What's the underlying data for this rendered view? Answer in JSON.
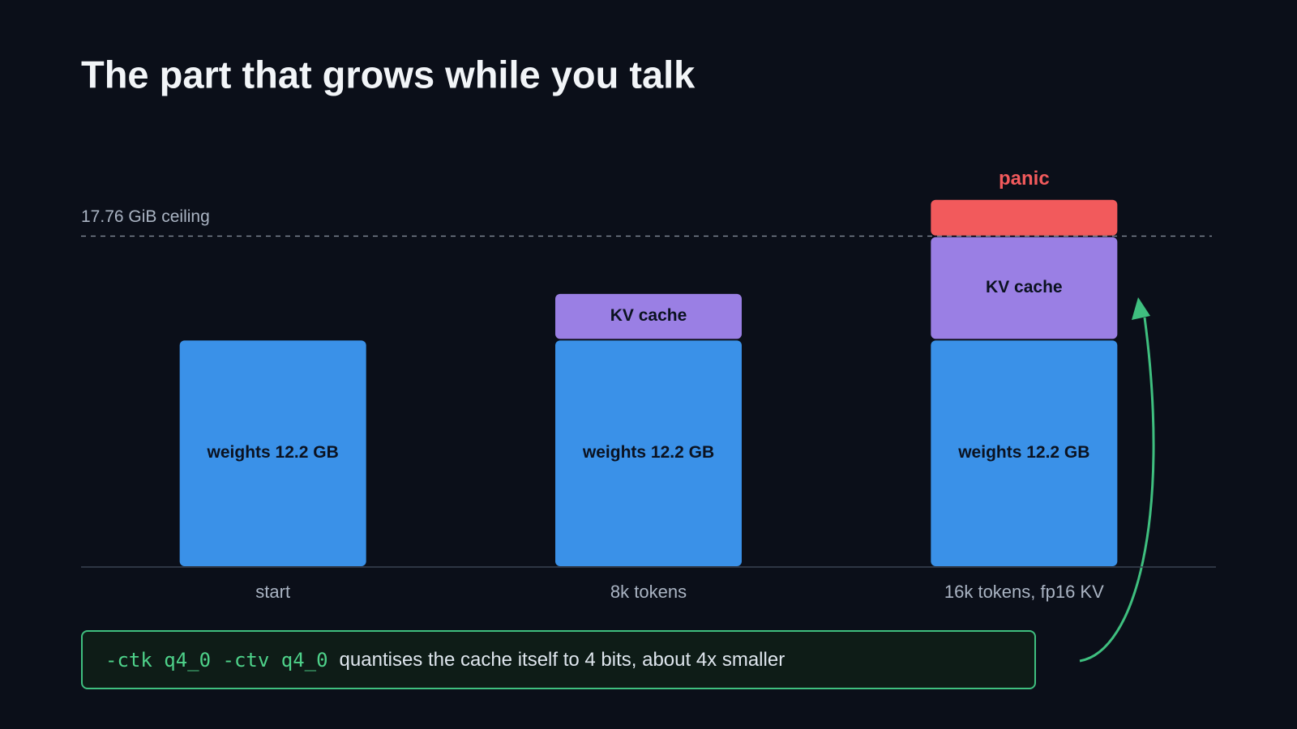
{
  "chart_data": {
    "type": "bar",
    "stacked": true,
    "title": "The part that grows while you talk",
    "categories": [
      "start",
      "8k tokens",
      "16k tokens, fp16 KV"
    ],
    "series": [
      {
        "color": "#3a91e8",
        "values": [
          12.2,
          12.2,
          12.2
        ],
        "value_labels": [
          "weights 12.2 GB",
          "weights 12.2 GB",
          "weights 12.2 GB"
        ]
      },
      {
        "name": "KV cache",
        "color": "#9a7fe4",
        "values": [
          0,
          2.5,
          5.55
        ],
        "value_labels": [
          null,
          "KV cache",
          "KV cache"
        ]
      },
      {
        "name": "panic",
        "color": "#f25a5c",
        "values": [
          0,
          0,
          2.0
        ]
      }
    ],
    "ceiling": {
      "value": 17.76,
      "label": "17.76 GiB ceiling"
    },
    "ylim": [
      0,
      20
    ],
    "callout": {
      "code": "-ctk q4_0 -ctv q4_0",
      "text": "quantises the cache itself to 4 bits, about 4x smaller"
    }
  }
}
